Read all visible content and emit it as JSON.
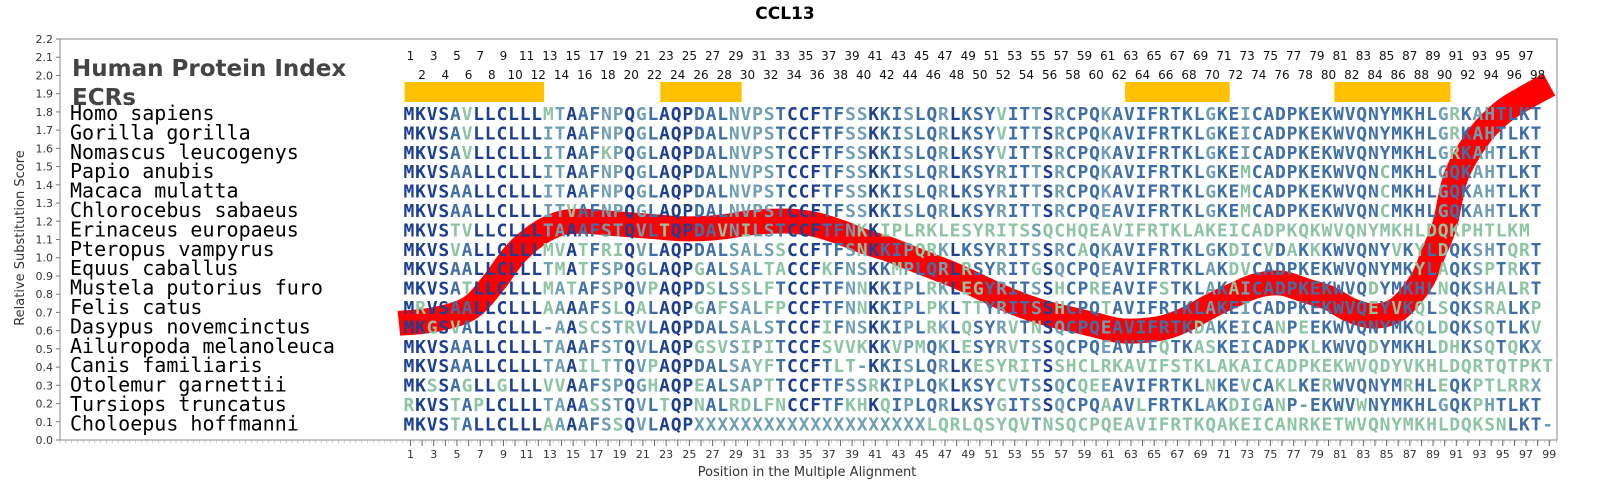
{
  "chart_data": {
    "type": "line",
    "title": "CCL13",
    "xlabel": "Position in the Multiple Alignment",
    "ylabel": "Relative Substitution Score",
    "xlim": [
      1,
      99
    ],
    "ylim": [
      0.0,
      2.2
    ],
    "y_ticks": [
      "0.0",
      "0.1",
      "0.2",
      "0.3",
      "0.4",
      "0.5",
      "0.6",
      "0.7",
      "0.8",
      "0.9",
      "1.0",
      "1.1",
      "1.2",
      "1.3",
      "1.4",
      "1.5",
      "1.6",
      "1.7",
      "1.8",
      "1.9",
      "2.0",
      "2.1",
      "2.2"
    ],
    "x_ticks": [
      "1",
      "3",
      "5",
      "7",
      "9",
      "11",
      "13",
      "15",
      "17",
      "19",
      "21",
      "23",
      "25",
      "27",
      "29",
      "31",
      "33",
      "35",
      "37",
      "39",
      "41",
      "43",
      "45",
      "47",
      "49",
      "51",
      "53",
      "55",
      "57",
      "59",
      "61",
      "63",
      "65",
      "67",
      "69",
      "71",
      "73",
      "75",
      "77",
      "79",
      "81",
      "83",
      "85",
      "87",
      "89",
      "91",
      "93",
      "95",
      "97",
      "99"
    ],
    "series": [
      {
        "name": "Relative Substitution Score",
        "color": "#ff0000",
        "x": [
          0,
          3,
          6,
          8,
          10,
          12,
          14,
          16,
          18,
          20,
          22,
          24,
          26,
          28,
          30,
          32,
          34,
          36,
          38,
          40,
          42,
          44,
          46,
          48,
          50,
          52,
          54,
          56,
          58,
          60,
          62,
          64,
          66,
          68,
          70,
          72,
          74,
          76,
          78,
          80,
          82,
          84,
          86,
          88,
          89,
          90,
          91,
          93,
          95,
          97,
          99
        ],
        "y": [
          0.64,
          0.66,
          0.72,
          0.85,
          1.02,
          1.13,
          1.19,
          1.2,
          1.19,
          1.18,
          1.17,
          1.16,
          1.16,
          1.17,
          1.19,
          1.2,
          1.2,
          1.18,
          1.14,
          1.09,
          1.05,
          1.0,
          0.95,
          0.9,
          0.84,
          0.78,
          0.73,
          0.69,
          0.66,
          0.63,
          0.6,
          0.6,
          0.62,
          0.67,
          0.74,
          0.8,
          0.85,
          0.86,
          0.82,
          0.78,
          0.71,
          0.68,
          0.72,
          0.87,
          1.02,
          1.18,
          1.45,
          1.67,
          1.8,
          1.88,
          1.95
        ]
      }
    ]
  },
  "header": {
    "human_protein_index": "Human Protein Index",
    "ecrs": "ECRs"
  },
  "positions_odd": [
    "1",
    "3",
    "5",
    "7",
    "9",
    "11",
    "13",
    "15",
    "17",
    "19",
    "21",
    "23",
    "25",
    "27",
    "29",
    "31",
    "33",
    "35",
    "37",
    "39",
    "41",
    "43",
    "45",
    "47",
    "49",
    "51",
    "53",
    "55",
    "57",
    "59",
    "61",
    "63",
    "65",
    "67",
    "69",
    "71",
    "73",
    "75",
    "77",
    "79",
    "81",
    "83",
    "85",
    "87",
    "89",
    "91",
    "93",
    "95",
    "97"
  ],
  "positions_even": [
    "2",
    "4",
    "6",
    "8",
    "10",
    "12",
    "14",
    "16",
    "18",
    "20",
    "22",
    "24",
    "26",
    "28",
    "30",
    "32",
    "34",
    "36",
    "38",
    "40",
    "42",
    "44",
    "46",
    "48",
    "50",
    "52",
    "54",
    "56",
    "58",
    "60",
    "62",
    "64",
    "66",
    "68",
    "70",
    "72",
    "74",
    "76",
    "78",
    "80",
    "82",
    "84",
    "86",
    "88",
    "90",
    "92",
    "94",
    "96",
    "98"
  ],
  "ecr_ranges": [
    [
      1,
      12
    ],
    [
      23,
      29
    ],
    [
      63,
      71
    ],
    [
      81,
      90
    ]
  ],
  "ecr_color": "#ffc000",
  "residue_colors": {
    "high": "#1c3f94",
    "mid": "#3f6fa8",
    "low": "#6e9fb3",
    "faint": "#8cc4a4"
  },
  "alignment": [
    {
      "species": "Homo sapiens",
      "sequence": "MKVSAVLLCLLLMTAAFNPQGLAQPDALNVPSTCCFTFSSKKISLQRLKSYVITTSRCPQKAVIFRTKLGKEICADPKEKWVQNYMKHLGRKAHTLKT"
    },
    {
      "species": "Gorilla gorilla",
      "sequence": "MKVSAVLLCLLLITAAFNPQGLAQPDALNVPSTCCFTFSSKKISLQRLKSYVITTSRCPQKAVIFRTKLGKEICADPKEKWVQNYMKHLGRKAHTLKT"
    },
    {
      "species": "Nomascus leucogenys",
      "sequence": "MKVSAVLLCLLLITAAFKPQGLAQPDALNVPSTCCFTFSSKKISLQRLKSYVITTSRCPQKAVIFRTKLGKEICADPKEKWVQNYMKHLGRKAHTLKT"
    },
    {
      "species": "Papio anubis",
      "sequence": "MKVSAALLCLLLITAAFNPQGLAQPDALNVPSTCCFTFSSKKISLQRLKSYRITTSRCPQKAVIFRTKLGKEMCADPKEKWVQNCMKHLGQKAHTLKT"
    },
    {
      "species": "Macaca mulatta",
      "sequence": "MKVSAALLCLLLITAAFNPQGLAQPDALNVPSTCCFTFSSKKISLQRLKSYRITTSRCPQKAVIFRTKLGKEMCADPKEKWVQNCMKHLGQKAHTLKT"
    },
    {
      "species": "Chlorocebus sabaeus",
      "sequence": "MKVSAALLCLLLITVAFNPQGLAQPDALNVPSTCCFTFSSKKISLQRLKSYRITTSRCPQEAVIFRTKLGKEMCADPKEKWVQNCMKHLGQKAHTLKT"
    },
    {
      "species": "Erinaceus europaeus",
      "sequence": "MKVSTVLLCLLLTAAAFSTQVLTQPDAVNILSTCCFTFNKKIPLRKLESYRITSSQCHQEAVIFRTKLAKEICADPKQKWVQNYMKHLDQKPHTLKM"
    },
    {
      "species": "Pteropus vampyrus",
      "sequence": "MKVSVALLCLLLMVATFRIQVLAQPDALSALSSCCFTFSNKKIPQRKLKSYRITSSRCAQKAVIFRTKLGKDICVDAKKKWVQNYVKYLDQKSHTQRT"
    },
    {
      "species": "Equus caballus",
      "sequence": "MKVSAALLCLLLTMATFSPQGLAQPGALSALTACCFKFNSKKMPLQRLRSYRITGSQCPQEAVIFRTKLAKDVCADPKEKWVQNYMKYLAQKSPTRKT"
    },
    {
      "species": "Mustela putorius furo",
      "sequence": "MKVSATLLCLLLMATAFSPQVPAQPDSLSSLFTCCFTFNNKKIPLRKLEGYRITSSHCPREAVIFSTKLAKAICADPKEKWVQDYMKHLNQKSHALRT"
    },
    {
      "species": "Felis catus",
      "sequence": "MRVSAALLCLLLAAAAFSLQALAQPGAFSALFPCCFTFNNKKIPLPKLTTYRITSSHCPQTAVIFRTKLAKEICADPKEKWVQEYVKQLSQKSRALKP"
    },
    {
      "species": "Dasypus novemcinctus",
      "sequence": "MKGSVALLCLLL-AASCSTRVLAQPDALSALSTCCFIFNSKKIPLRKLQSYRVTNSQCPQEAVIFRTKDAKEICANPEEKWVQNYMKQLDQKSQTLKV"
    },
    {
      "species": "Ailuropoda melanoleuca",
      "sequence": "MKVSAALLCLLLTAAAFSTQVLAQPGSVSIPITCCFSVVKKKVPMQKLESYRVTSSQCPQEAVIFQTKASKEICADPKLKWVQDYMKHLDHKSQTQKX"
    },
    {
      "species": "Canis familiaris",
      "sequence": "MKVSAALLCLLLTAAILTTQVPAQPDALSAYFTCCFTLT-KKISLQRLKESYRITSSHCLRKAVIFSTKLAKAICADPKEKWVQDYVKHLDQRTQTPKT"
    },
    {
      "species": "Otolemur garnettii",
      "sequence": "MKSSAGLLGLLLVVAAFSPQGHAQPEALSAPTTCCFTFSSRKIPLQKLKSYCVTSSQCQEEAVIFRTKLNKEVCAKLKERWVQNYMRHLEQKPTLRRX"
    },
    {
      "species": "Tursiops truncatus",
      "sequence": "RKVSTAPLCLLLTAAASSTQVLTQPNALRDLFNCCFTFKHKQIPLQRLKSYGITSSQCPQAAVLFRTKLAKDIGANP-EKWVWNYMKHLGQKPHTLKT"
    },
    {
      "species": "Choloepus hoffmanni",
      "sequence": "MKVSTALLCLLLAAAAFSSQVLAQPXXXXXXXXXXXXXXXXXXXXLQRLQSYQVTNSQCPQEAVIFRTKQAKEICANRKETWVQNYMKHLDQKSNLKT-"
    }
  ]
}
